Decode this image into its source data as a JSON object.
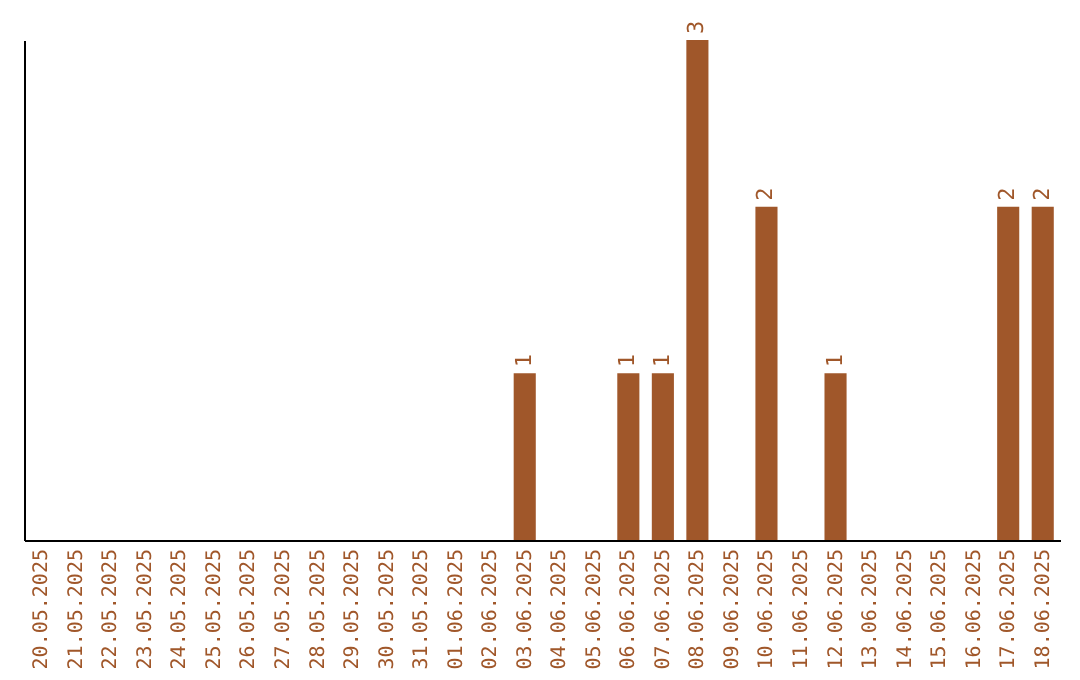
{
  "chart_data": {
    "type": "bar",
    "categories": [
      "20.05.2025",
      "21.05.2025",
      "22.05.2025",
      "23.05.2025",
      "24.05.2025",
      "25.05.2025",
      "26.05.2025",
      "27.05.2025",
      "28.05.2025",
      "29.05.2025",
      "30.05.2025",
      "31.05.2025",
      "01.06.2025",
      "02.06.2025",
      "03.06.2025",
      "04.06.2025",
      "05.06.2025",
      "06.06.2025",
      "07.06.2025",
      "08.06.2025",
      "09.06.2025",
      "10.06.2025",
      "11.06.2025",
      "12.06.2025",
      "13.06.2025",
      "14.06.2025",
      "15.06.2025",
      "16.06.2025",
      "17.06.2025",
      "18.06.2025"
    ],
    "values": [
      null,
      null,
      null,
      null,
      null,
      null,
      null,
      null,
      null,
      null,
      null,
      null,
      null,
      null,
      1,
      null,
      null,
      1,
      1,
      3,
      null,
      2,
      null,
      1,
      null,
      null,
      null,
      null,
      2,
      2
    ],
    "data_labels": true,
    "color": "#a0572a",
    "tick_labels": "x"
  }
}
